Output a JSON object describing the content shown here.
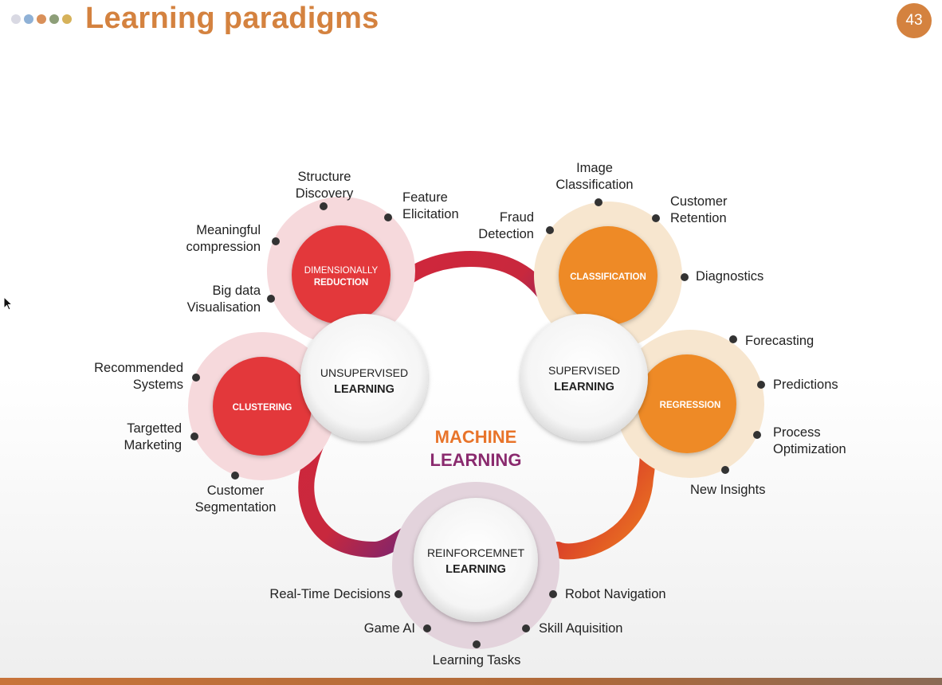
{
  "header": {
    "title": "Learning paradigms",
    "page_number": "43",
    "dot_colors": [
      "#d9d9e3",
      "#8fb1d6",
      "#d9905a",
      "#8d9e78",
      "#d6b25a"
    ]
  },
  "center": {
    "line1": "MACHINE",
    "line2": "LEARNING",
    "line1_color": "#e8742a",
    "line2_color": "#8a2a6e"
  },
  "hubs": {
    "unsupervised": {
      "line1": "UNSUPERVISED",
      "line2": "LEARNING"
    },
    "supervised": {
      "line1": "SUPERVISED",
      "line2": "LEARNING"
    },
    "reinforcement": {
      "line1": "REINFORCEMNET",
      "line2": "LEARNING"
    }
  },
  "sub_nodes": {
    "dimensionality": {
      "line1": "DIMENSIONALLY",
      "line2": "REDUCTION"
    },
    "clustering": {
      "label": "CLUSTERING"
    },
    "classification": {
      "label": "CLASSIFICATION"
    },
    "regression": {
      "label": "REGRESSION"
    }
  },
  "leaves": {
    "structure_discovery": {
      "line1": "Structure",
      "line2": "Discovery"
    },
    "feature_elicitation": {
      "line1": "Feature",
      "line2": "Elicitation"
    },
    "meaningful_compression": {
      "line1": "Meaningful",
      "line2": "compression"
    },
    "big_data_visualisation": {
      "line1": "Big data",
      "line2": "Visualisation"
    },
    "recommended_systems": {
      "line1": "Recommended",
      "line2": "Systems"
    },
    "targetted_marketing": {
      "line1": "Targetted",
      "line2": "Marketing"
    },
    "customer_segmentation": {
      "line1": "Customer",
      "line2": "Segmentation"
    },
    "image_classification": {
      "line1": "Image",
      "line2": "Classification"
    },
    "fraud_detection": {
      "line1": "Fraud",
      "line2": "Detection"
    },
    "customer_retention": {
      "line1": "Customer",
      "line2": "Retention"
    },
    "diagnostics": {
      "label": "Diagnostics"
    },
    "forecasting": {
      "label": "Forecasting"
    },
    "predictions": {
      "label": "Predictions"
    },
    "process_optimization": {
      "line1": "Process",
      "line2": "Optimization"
    },
    "new_insights": {
      "label": "New Insights"
    },
    "real_time_decisions": {
      "label": "Real-Time Decisions"
    },
    "robot_navigation": {
      "label": "Robot Navigation"
    },
    "game_ai": {
      "label": "Game AI"
    },
    "skill_aquisition": {
      "label": "Skill Aquisition"
    },
    "learning_tasks": {
      "label": "Learning Tasks"
    }
  }
}
